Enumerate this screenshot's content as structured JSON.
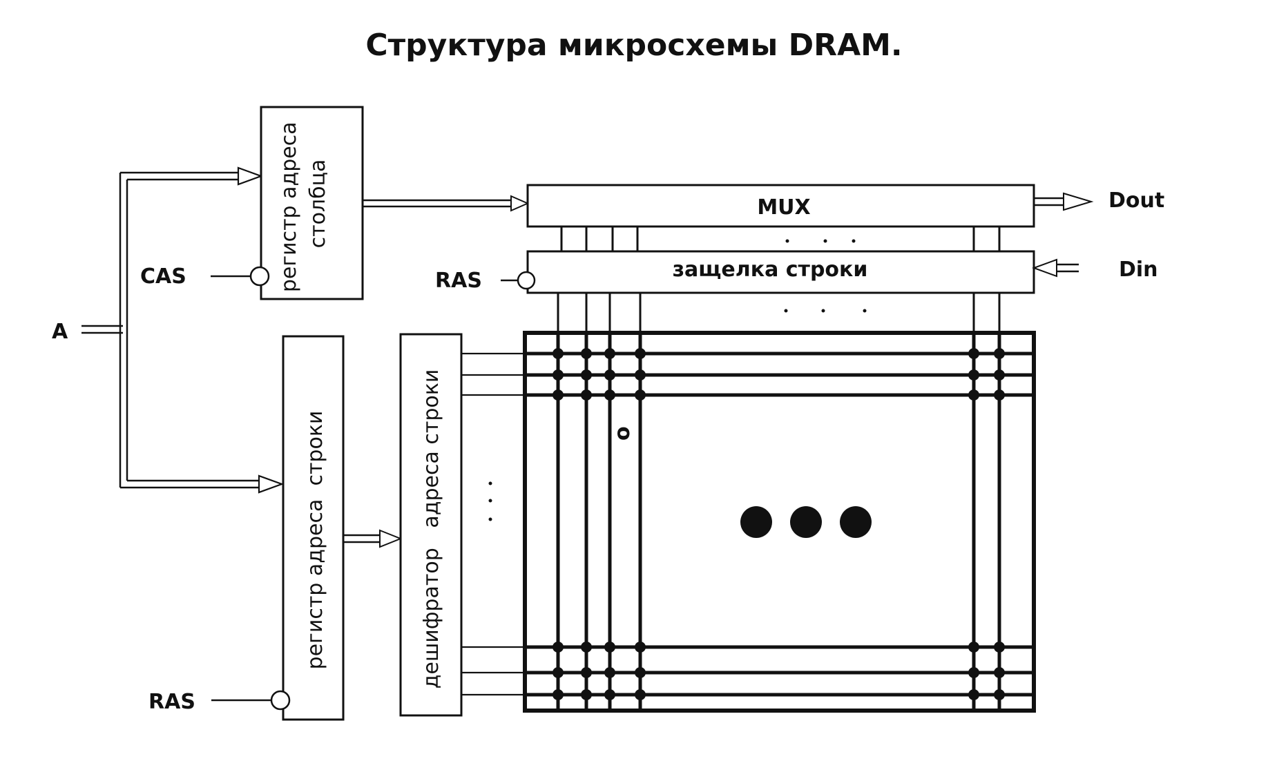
{
  "title": "Структура микросхемы DRAM.",
  "signals": {
    "a": "A",
    "cas": "CAS",
    "ras_latch": "RAS",
    "ras_row": "RAS",
    "dout": "Dout",
    "din": "Din"
  },
  "blocks": {
    "col_register": [
      "регистр адреса",
      "столбца"
    ],
    "row_register": "регистр адреса  строки",
    "decoder": "дешифратор   адреса строки",
    "mux": "MUX",
    "row_latch": "защелка строки"
  },
  "glyphs": {
    "cell": "o"
  }
}
